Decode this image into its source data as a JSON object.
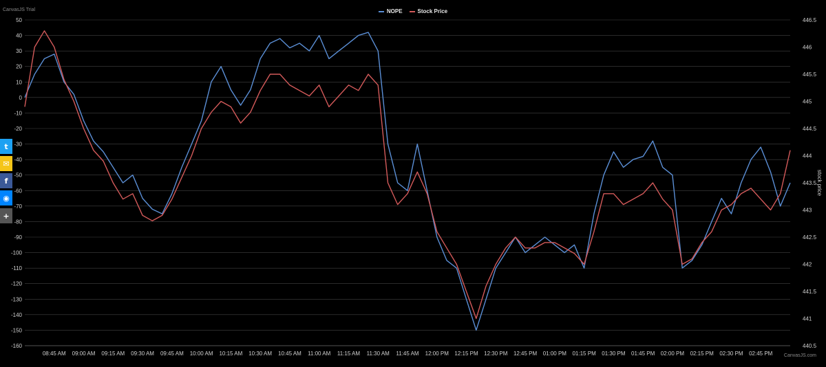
{
  "chart_data": {
    "type": "line",
    "title": "",
    "watermark": "CanvasJS Trial",
    "credit": "CanvasJS.com",
    "x_ticks": [
      "08:45 AM",
      "09:00 AM",
      "09:15 AM",
      "09:30 AM",
      "09:45 AM",
      "10:00 AM",
      "10:15 AM",
      "10:30 AM",
      "10:45 AM",
      "11:00 AM",
      "11:15 AM",
      "11:30 AM",
      "11:45 AM",
      "12:00 PM",
      "12:15 PM",
      "12:30 PM",
      "12:45 PM",
      "01:00 PM",
      "01:15 PM",
      "01:30 PM",
      "01:45 PM",
      "02:00 PM",
      "02:15 PM",
      "02:30 PM",
      "02:45 PM"
    ],
    "y_left": {
      "label": "",
      "min": -160,
      "max": 50,
      "step": 10
    },
    "y_right": {
      "label": "stock price",
      "min": 440.5,
      "max": 446.5,
      "step": 0.5
    },
    "grid": true,
    "legend_position": "top-center",
    "series": [
      {
        "name": "NOPE",
        "axis": "left",
        "color": "#5b8fd6",
        "times": [
          "08:30",
          "08:35",
          "08:40",
          "08:45",
          "08:50",
          "08:55",
          "09:00",
          "09:05",
          "09:10",
          "09:15",
          "09:20",
          "09:25",
          "09:30",
          "09:35",
          "09:40",
          "09:45",
          "09:50",
          "09:55",
          "10:00",
          "10:05",
          "10:10",
          "10:15",
          "10:20",
          "10:25",
          "10:30",
          "10:35",
          "10:40",
          "10:45",
          "10:50",
          "10:55",
          "11:00",
          "11:05",
          "11:10",
          "11:15",
          "11:20",
          "11:25",
          "11:30",
          "11:35",
          "11:40",
          "11:45",
          "11:50",
          "11:55",
          "12:00",
          "12:05",
          "12:10",
          "12:15",
          "12:20",
          "12:25",
          "12:30",
          "12:35",
          "12:40",
          "12:45",
          "12:50",
          "12:55",
          "13:00",
          "13:05",
          "13:10",
          "13:15",
          "13:20",
          "13:25",
          "13:30",
          "13:35",
          "13:40",
          "13:45",
          "13:50",
          "13:55",
          "14:00",
          "14:05",
          "14:10",
          "14:15",
          "14:20",
          "14:25",
          "14:30",
          "14:35",
          "14:40",
          "14:45",
          "14:50",
          "14:55",
          "15:00"
        ],
        "values": [
          0,
          15,
          25,
          28,
          10,
          2,
          -15,
          -28,
          -35,
          -45,
          -55,
          -50,
          -65,
          -72,
          -75,
          -62,
          -45,
          -30,
          -15,
          10,
          20,
          5,
          -5,
          5,
          25,
          35,
          38,
          32,
          35,
          30,
          40,
          25,
          30,
          35,
          40,
          42,
          30,
          -30,
          -55,
          -60,
          -30,
          -60,
          -90,
          -105,
          -110,
          -130,
          -150,
          -130,
          -110,
          -100,
          -90,
          -100,
          -95,
          -90,
          -95,
          -100,
          -95,
          -110,
          -75,
          -50,
          -35,
          -45,
          -40,
          -38,
          -28,
          -45,
          -50,
          -110,
          -105,
          -95,
          -80,
          -65,
          -75,
          -55,
          -40,
          -32,
          -48,
          -70,
          -55
        ]
      },
      {
        "name": "Stock Price",
        "axis": "right",
        "color": "#d35a5a",
        "times": [
          "08:30",
          "08:35",
          "08:40",
          "08:45",
          "08:50",
          "08:55",
          "09:00",
          "09:05",
          "09:10",
          "09:15",
          "09:20",
          "09:25",
          "09:30",
          "09:35",
          "09:40",
          "09:45",
          "09:50",
          "09:55",
          "10:00",
          "10:05",
          "10:10",
          "10:15",
          "10:20",
          "10:25",
          "10:30",
          "10:35",
          "10:40",
          "10:45",
          "10:50",
          "10:55",
          "11:00",
          "11:05",
          "11:10",
          "11:15",
          "11:20",
          "11:25",
          "11:30",
          "11:35",
          "11:40",
          "11:45",
          "11:50",
          "11:55",
          "12:00",
          "12:05",
          "12:10",
          "12:15",
          "12:20",
          "12:25",
          "12:30",
          "12:35",
          "12:40",
          "12:45",
          "12:50",
          "12:55",
          "13:00",
          "13:05",
          "13:10",
          "13:15",
          "13:20",
          "13:25",
          "13:30",
          "13:35",
          "13:40",
          "13:45",
          "13:50",
          "13:55",
          "14:00",
          "14:05",
          "14:10",
          "14:15",
          "14:20",
          "14:25",
          "14:30",
          "14:35",
          "14:40",
          "14:45",
          "14:50",
          "14:55",
          "15:00"
        ],
        "values": [
          444.9,
          446.0,
          446.3,
          446.0,
          445.4,
          445.0,
          444.5,
          444.1,
          443.9,
          443.5,
          443.2,
          443.3,
          442.9,
          442.8,
          442.9,
          443.2,
          443.6,
          444.0,
          444.5,
          444.8,
          445.0,
          444.9,
          444.6,
          444.8,
          445.2,
          445.5,
          445.5,
          445.3,
          445.2,
          445.1,
          445.3,
          444.9,
          445.1,
          445.3,
          445.2,
          445.5,
          445.3,
          443.5,
          443.1,
          443.3,
          443.7,
          443.3,
          442.6,
          442.3,
          442.0,
          441.5,
          441.0,
          441.6,
          442.0,
          442.3,
          442.5,
          442.3,
          442.3,
          442.4,
          442.4,
          442.3,
          442.2,
          442.0,
          442.6,
          443.3,
          443.3,
          443.1,
          443.2,
          443.3,
          443.5,
          443.2,
          443.0,
          442.0,
          442.1,
          442.4,
          442.6,
          443.0,
          443.1,
          443.3,
          443.4,
          443.2,
          443.0,
          443.3,
          444.1
        ]
      }
    ]
  },
  "social": [
    {
      "icon": "twitter-icon",
      "glyph": "🐦",
      "color": "#1da1f2"
    },
    {
      "icon": "email-icon",
      "glyph": "✉",
      "color": "#f5c518"
    },
    {
      "icon": "facebook-icon",
      "glyph": "f",
      "color": "#3b5998"
    },
    {
      "icon": "messenger-icon",
      "glyph": "◉",
      "color": "#0084ff"
    },
    {
      "icon": "share-more-icon",
      "glyph": "+",
      "color": "#555555"
    }
  ]
}
